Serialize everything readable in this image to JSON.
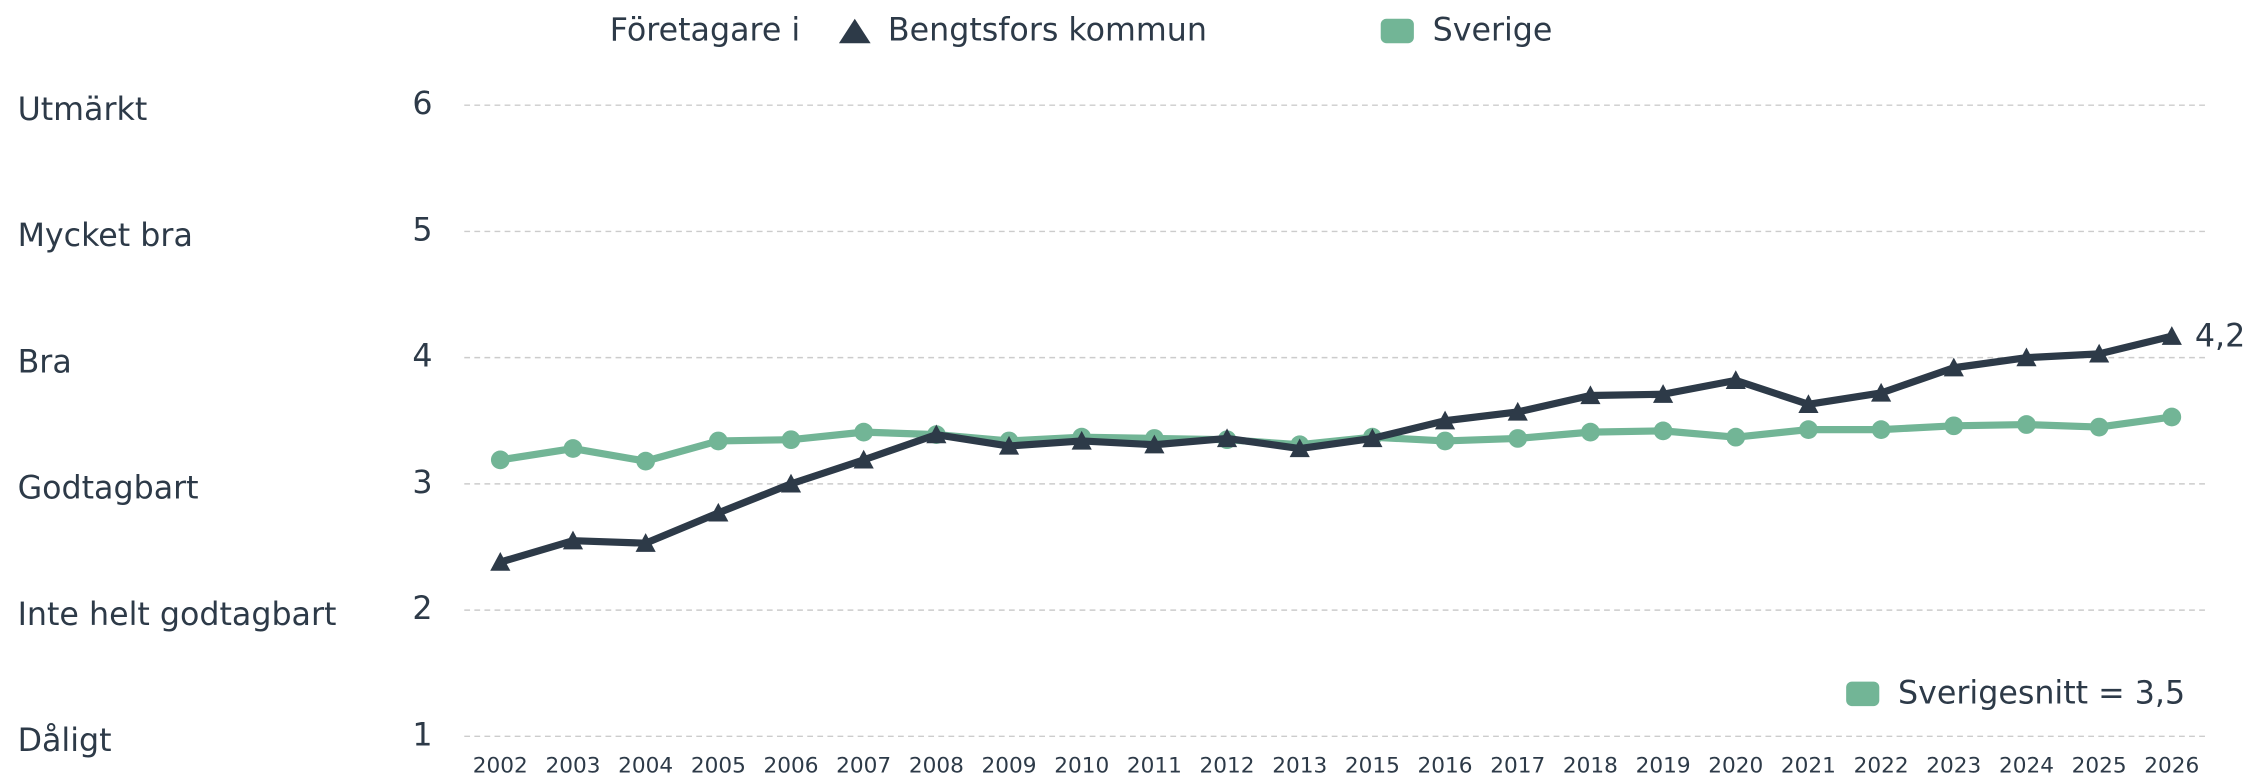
{
  "chart_data": {
    "type": "line",
    "legend_title": "Företagare i",
    "categories": [
      "2002",
      "2003",
      "2004",
      "2005",
      "2006",
      "2007",
      "2008",
      "2009",
      "2010",
      "2011",
      "2012",
      "2013",
      "2015",
      "2016",
      "2017",
      "2018",
      "2019",
      "2020",
      "2021",
      "2022",
      "2023",
      "2024",
      "2025",
      "2026"
    ],
    "series": [
      {
        "name": "Bengtsfors kommun",
        "color": "#2d3a48",
        "marker": "triangle",
        "values": [
          2.38,
          2.55,
          2.53,
          2.77,
          3.0,
          3.19,
          3.39,
          3.3,
          3.34,
          3.31,
          3.36,
          3.28,
          3.36,
          3.5,
          3.57,
          3.7,
          3.71,
          3.82,
          3.63,
          3.72,
          3.92,
          4.0,
          4.03,
          4.17
        ],
        "value_labels": [
          null,
          null,
          null,
          null,
          null,
          null,
          null,
          null,
          null,
          null,
          null,
          null,
          null,
          null,
          null,
          null,
          null,
          null,
          null,
          null,
          null,
          null,
          null,
          "4,2"
        ]
      },
      {
        "name": "Sverige",
        "color": "#72b596",
        "marker": "circle",
        "values": [
          3.19,
          3.28,
          3.18,
          3.34,
          3.35,
          3.41,
          3.39,
          3.34,
          3.37,
          3.36,
          3.35,
          3.31,
          3.37,
          3.34,
          3.36,
          3.41,
          3.42,
          3.37,
          3.43,
          3.43,
          3.46,
          3.47,
          3.45,
          3.53
        ]
      }
    ],
    "ylim": [
      1,
      6
    ],
    "yticks": [
      1,
      2,
      3,
      4,
      5,
      6
    ],
    "ytick_levels": [
      "Dåligt",
      "Inte helt godtagbart",
      "Godtagbart",
      "Bra",
      "Mycket bra",
      "Utmärkt"
    ],
    "grid": true,
    "annotation": {
      "text": "Sverigesnitt = 3,5",
      "color": "#72b596"
    }
  }
}
